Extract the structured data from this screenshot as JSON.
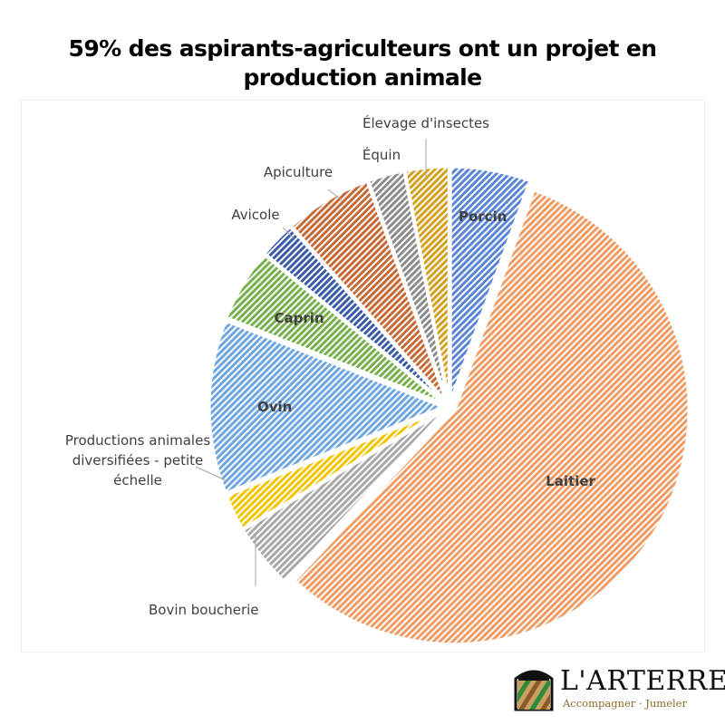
{
  "title": "59% des aspirants-agriculteurs ont un projet en production animale",
  "chart_data": {
    "type": "pie",
    "title": "59% des aspirants-agriculteurs ont un projet en production animale",
    "slices": [
      {
        "label": "Porcin",
        "value": 5.5,
        "color": "#5b86d6",
        "label_inside": true
      },
      {
        "label": "Laitier",
        "value": 56.5,
        "color": "#ef9b62",
        "label_inside": true
      },
      {
        "label": "Bovin boucherie",
        "value": 4.5,
        "color": "#a8a8a8",
        "label_inside": false
      },
      {
        "label": "Productions animales diversifiées - petite échelle",
        "label_lines": [
          "Productions animales",
          "diversifiées - petite",
          "échelle"
        ],
        "value": 2.5,
        "color": "#f2c500",
        "label_inside": false
      },
      {
        "label": "Ovin",
        "value": 12.0,
        "color": "#6fa6e2",
        "label_inside": true
      },
      {
        "label": "Caprin",
        "value": 5.0,
        "color": "#78b04d",
        "label_inside": true
      },
      {
        "label": "Avicole",
        "value": 2.5,
        "color": "#3a5ba8",
        "label_inside": false
      },
      {
        "label": "Apiculture",
        "value": 6.0,
        "color": "#c86a35",
        "label_inside": false
      },
      {
        "label": "Équin",
        "value": 2.5,
        "color": "#8c8c8c",
        "label_inside": false
      },
      {
        "label": "Élevage d'insectes",
        "value": 3.0,
        "color": "#d4a020",
        "label_inside": false
      }
    ],
    "legend": "none"
  },
  "logo": {
    "name": "L'ARTERRE",
    "tagline": "Accompagner · Jumeler",
    "colors": {
      "roof": "#111111",
      "stripe_green": "#2e8b3a",
      "stripe_brown": "#8b5a2b",
      "stripe_light": "#c9a060"
    }
  }
}
